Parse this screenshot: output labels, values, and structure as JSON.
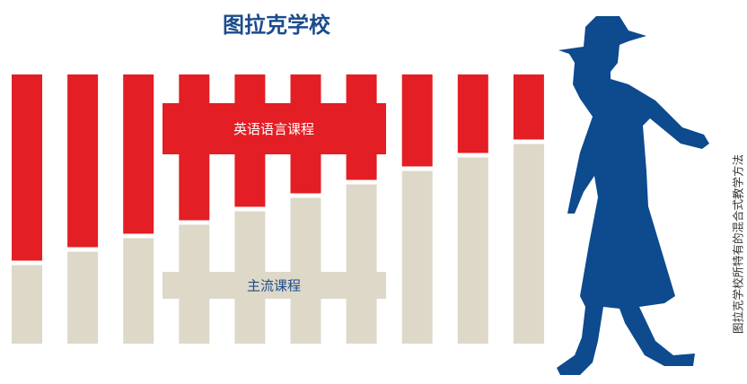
{
  "chart_data": {
    "type": "stacked-bar",
    "title": "图拉克学校",
    "side_note": "图拉克学校所特有的混合式教学方法",
    "categories": [
      null,
      null,
      null,
      null,
      null,
      null,
      null,
      null,
      null,
      null
    ],
    "series": [
      {
        "name": "英语语言课程",
        "color": "#e31e24",
        "values": [
          70,
          65,
          60,
          55,
          50,
          45,
          40,
          35,
          30,
          25
        ]
      },
      {
        "name": "主流课程",
        "color": "#ddd8c8",
        "values": [
          30,
          35,
          40,
          45,
          50,
          55,
          60,
          65,
          70,
          75
        ]
      }
    ],
    "ylim": [
      0,
      100
    ]
  }
}
